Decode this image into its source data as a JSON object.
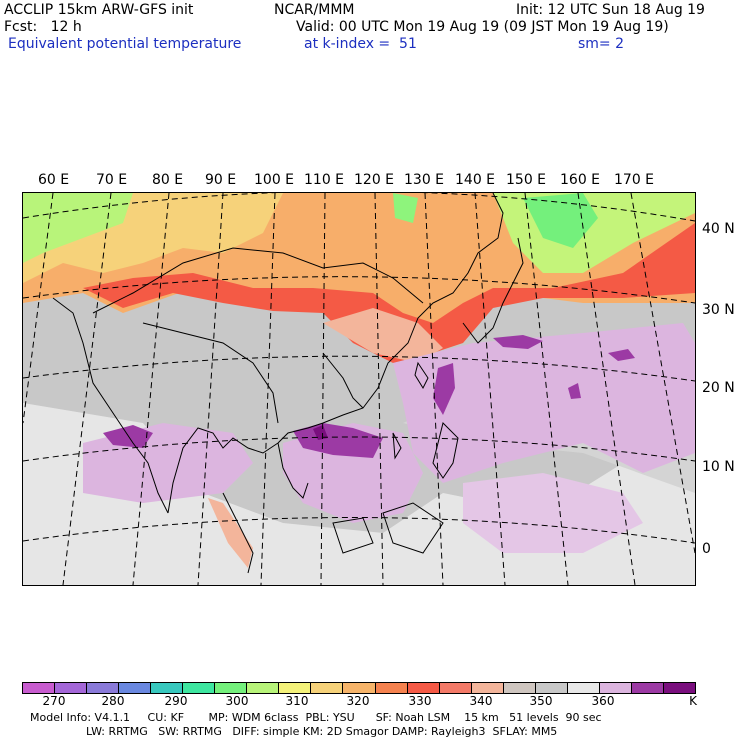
{
  "header": {
    "left_line1": "ACCLIP 15km ARW-GFS init",
    "center_line1": "NCAR/MMM",
    "init": "Init: 12 UTC Sun 18 Aug 19",
    "fcst": "Fcst:   12 h",
    "valid": "Valid: 00 UTC Mon 19 Aug 19 (09 JST Mon 19 Aug 19)",
    "field": "Equivalent potential temperature",
    "level": "at k-index =  51",
    "smooth": "sm= 2"
  },
  "map": {
    "lon_labels": [
      "60 E",
      "70 E",
      "80 E",
      "90 E",
      "100 E",
      "110 E",
      "120 E",
      "130 E",
      "140 E",
      "150 E",
      "160 E",
      "170 E"
    ],
    "lat_labels": [
      "40 N",
      "30 N",
      "20 N",
      "10 N",
      "0"
    ]
  },
  "colorbar": {
    "colors": [
      "#c85ccf",
      "#a467d8",
      "#8a7ad9",
      "#6a88e0",
      "#38c8be",
      "#3ee6a0",
      "#74f07c",
      "#b8f47a",
      "#f4f27a",
      "#f6d27a",
      "#f6b46a",
      "#f5824f",
      "#f55a46",
      "#f47a68",
      "#f3b59b",
      "#cfc6c0",
      "#c8c8c8",
      "#e8e8e8",
      "#dcb5df",
      "#9c3aa4",
      "#7a0f7e"
    ],
    "ticks": [
      "270",
      "280",
      "290",
      "300",
      "310",
      "320",
      "330",
      "340",
      "350",
      "360",
      "K"
    ]
  },
  "footer": {
    "line1": "Model Info: V4.1.1     CU: KF       MP: WDM 6class  PBL: YSU      SF: Noah LSM    15 km   51 levels  90 sec",
    "line2": "                LW: RRTMG   SW: RRTMG   DIFF: simple KM: 2D Smagor DAMP: Rayleigh3  SFLAY: MM5"
  }
}
